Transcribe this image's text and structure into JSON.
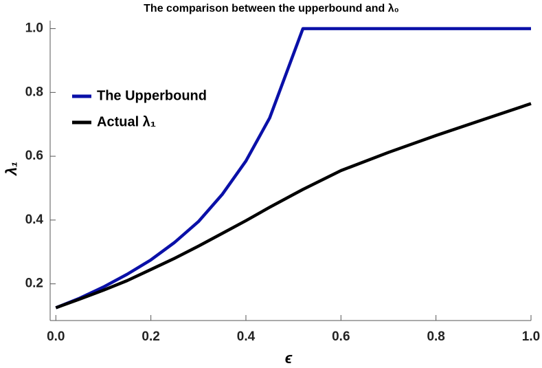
{
  "chart_data": {
    "type": "line",
    "title": "The comparison between the upperbound and λ₀",
    "x_label": "ϵ",
    "y_label": "λ₁",
    "x": [
      0,
      0.05,
      0.1,
      0.15,
      0.2,
      0.25,
      0.3,
      0.35,
      0.4,
      0.45,
      0.5,
      0.52,
      0.6,
      0.7,
      0.8,
      0.9,
      1.0
    ],
    "series": [
      {
        "name": "The Upperbound",
        "color": "#0a10a8",
        "values": [
          0.125,
          0.155,
          0.19,
          0.23,
          0.275,
          0.33,
          0.395,
          0.48,
          0.585,
          0.72,
          0.92,
          1.0,
          1.0,
          1.0,
          1.0,
          1.0,
          1.0
        ]
      },
      {
        "name": "Actual λ₁",
        "color": "#000000",
        "values": [
          0.125,
          0.152,
          0.18,
          0.21,
          0.245,
          0.28,
          0.318,
          0.358,
          0.398,
          0.44,
          0.48,
          0.496,
          0.555,
          0.612,
          0.665,
          0.715,
          0.765
        ]
      }
    ],
    "xlim": [
      -0.012,
      1.0
    ],
    "ylim": [
      0.085,
      1.025
    ],
    "xticks": [
      {
        "value": 0,
        "label": "0.0"
      },
      0.2,
      0.4,
      0.6,
      0.8,
      {
        "value": 1,
        "label": "1.0"
      }
    ],
    "yticks": [
      0.2,
      0.4,
      0.6,
      0.8,
      {
        "value": 1,
        "label": "1.0"
      }
    ],
    "legend": "upper-left"
  }
}
